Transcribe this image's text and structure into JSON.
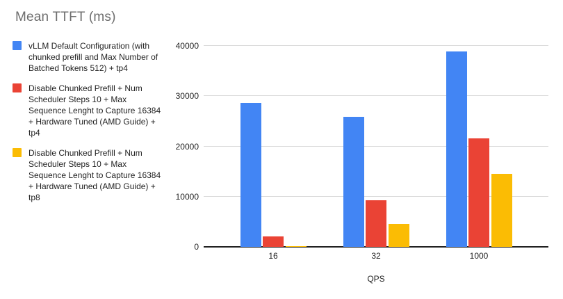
{
  "chart_data": {
    "type": "bar",
    "title": "Mean TTFT (ms)",
    "xlabel": "QPS",
    "ylabel": "",
    "categories": [
      "16",
      "32",
      "1000"
    ],
    "series": [
      {
        "name": "vLLM Default Configuration (with chunked prefill and Max Number of Batched Tokens 512) + tp4",
        "color": "#4285F4",
        "values": [
          28600,
          25900,
          38900
        ]
      },
      {
        "name": "Disable Chunked Prefill + Num Scheduler Steps 10 + Max Sequence Lenght to Capture 16384 + Hardware Tuned (AMD Guide) + tp4",
        "color": "#EA4335",
        "values": [
          2100,
          9300,
          21600
        ]
      },
      {
        "name": "Disable Chunked Prefill + Num Scheduler Steps 10 + Max Sequence Lenght to Capture 16384 + Hardware Tuned (AMD Guide) + tp8",
        "color": "#FBBC04",
        "values": [
          150,
          4600,
          14600
        ]
      }
    ],
    "ylim": [
      0,
      40000
    ],
    "yticks": [
      0,
      10000,
      20000,
      30000,
      40000
    ],
    "grid": true,
    "legend_position": "left",
    "colors": {
      "grid": "#dadada",
      "axis_line": "#212121",
      "title_text": "#6d6d6d",
      "label_text": "#1f1f1f",
      "background": "#ffffff"
    }
  }
}
